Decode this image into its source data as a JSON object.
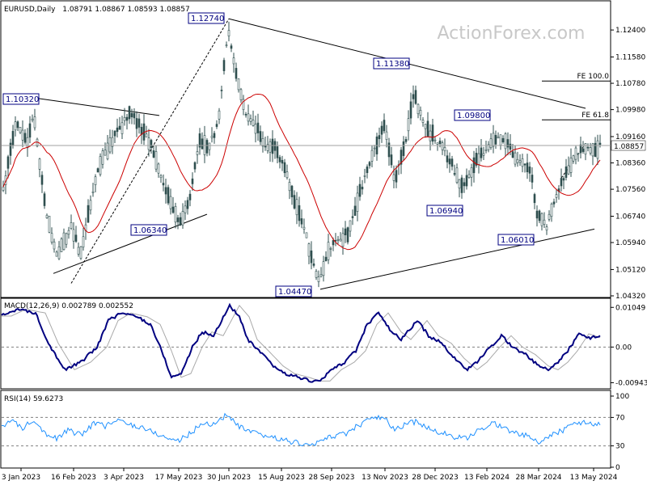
{
  "header": {
    "symbol": "EURUSD,Daily",
    "ohlc": "1.08791 1.08867 1.08593 1.08857"
  },
  "watermark": "ActionForex.com",
  "current_price_label": "1.08857",
  "chart_data": [
    {
      "type": "candlestick",
      "title": "EURUSD,Daily",
      "ylim": [
        1.0432,
        1.1282
      ],
      "y_ticks": [
        "1.12400",
        "1.11580",
        "1.10780",
        "1.09980",
        "1.09160",
        "1.08360",
        "1.07560",
        "1.06740",
        "1.05940",
        "1.05120",
        "1.04320"
      ],
      "x_ticks": [
        "3 Jan 2023",
        "16 Feb 2023",
        "3 Apr 2023",
        "17 May 2023",
        "30 Jun 2023",
        "15 Aug 2023",
        "28 Sep 2023",
        "13 Nov 2023",
        "28 Dec 2023",
        "13 Feb 2024",
        "28 Mar 2024",
        "13 May 2024"
      ],
      "close_path": [
        [
          0,
          1.072
        ],
        [
          8,
          1.08
        ],
        [
          20,
          1.096
        ],
        [
          34,
          1.09
        ],
        [
          42,
          1.098
        ],
        [
          56,
          1.07
        ],
        [
          70,
          1.056
        ],
        [
          88,
          1.064
        ],
        [
          100,
          1.056
        ],
        [
          112,
          1.072
        ],
        [
          125,
          1.084
        ],
        [
          138,
          1.09
        ],
        [
          150,
          1.095
        ],
        [
          162,
          1.099
        ],
        [
          174,
          1.094
        ],
        [
          186,
          1.09
        ],
        [
          198,
          1.08
        ],
        [
          210,
          1.072
        ],
        [
          222,
          1.065
        ],
        [
          234,
          1.072
        ],
        [
          246,
          1.09
        ],
        [
          258,
          1.088
        ],
        [
          270,
          1.096
        ],
        [
          282,
          1.125
        ],
        [
          292,
          1.11
        ],
        [
          304,
          1.098
        ],
        [
          316,
          1.095
        ],
        [
          328,
          1.088
        ],
        [
          340,
          1.088
        ],
        [
          352,
          1.082
        ],
        [
          364,
          1.072
        ],
        [
          376,
          1.064
        ],
        [
          388,
          1.052
        ],
        [
          396,
          1.048
        ],
        [
          406,
          1.057
        ],
        [
          418,
          1.06
        ],
        [
          430,
          1.062
        ],
        [
          440,
          1.07
        ],
        [
          452,
          1.08
        ],
        [
          464,
          1.088
        ],
        [
          476,
          1.095
        ],
        [
          488,
          1.078
        ],
        [
          500,
          1.088
        ],
        [
          512,
          1.105
        ],
        [
          524,
          1.095
        ],
        [
          536,
          1.092
        ],
        [
          548,
          1.088
        ],
        [
          560,
          1.082
        ],
        [
          572,
          1.076
        ],
        [
          584,
          1.082
        ],
        [
          596,
          1.086
        ],
        [
          608,
          1.09
        ],
        [
          620,
          1.092
        ],
        [
          632,
          1.087
        ],
        [
          644,
          1.084
        ],
        [
          656,
          1.081
        ],
        [
          664,
          1.068
        ],
        [
          676,
          1.064
        ],
        [
          688,
          1.074
        ],
        [
          700,
          1.08
        ],
        [
          712,
          1.086
        ],
        [
          724,
          1.088
        ],
        [
          736,
          1.087
        ],
        [
          742,
          1.0886
        ]
      ],
      "annotations": [
        {
          "text": "1.12740",
          "value": 1.1274
        },
        {
          "text": "1.11380",
          "value": 1.1138
        },
        {
          "text": "1.10320",
          "value": 1.1032
        },
        {
          "text": "1.09800",
          "value": 1.098
        },
        {
          "text": "1.06340",
          "value": 1.0634
        },
        {
          "text": "1.06940",
          "value": 1.0694
        },
        {
          "text": "1.06010",
          "value": 1.0601
        },
        {
          "text": "1.04470",
          "value": 1.0447
        }
      ],
      "levels": [
        {
          "text": "FE 100.0",
          "value": 1.1085
        },
        {
          "text": "FE 61.8",
          "value": 1.0967
        }
      ],
      "series": [
        {
          "name": "",
          "color": "#2f4f4f"
        },
        {
          "name": "",
          "color": "#cc0000"
        }
      ]
    },
    {
      "type": "line",
      "title": "MACD(12,26,9) 0.002789 0.002552",
      "ylim": [
        -0.0104,
        0.0114
      ],
      "y_ticks": [
        "0.01049",
        "0.00",
        "-0.009435"
      ],
      "series": [
        {
          "name": "",
          "color": "#000080"
        },
        {
          "name": "",
          "color": "#a9a9a9"
        }
      ],
      "macd_path": [
        [
          0,
          0.008
        ],
        [
          20,
          0.01
        ],
        [
          44,
          0.009
        ],
        [
          60,
          0.001
        ],
        [
          80,
          -0.006
        ],
        [
          100,
          -0.004
        ],
        [
          120,
          0.0
        ],
        [
          134,
          0.007
        ],
        [
          150,
          0.009
        ],
        [
          170,
          0.008
        ],
        [
          186,
          0.006
        ],
        [
          200,
          -0.001
        ],
        [
          212,
          -0.008
        ],
        [
          224,
          -0.007
        ],
        [
          238,
          0.0
        ],
        [
          250,
          0.004
        ],
        [
          264,
          0.003
        ],
        [
          284,
          0.011
        ],
        [
          296,
          0.008
        ],
        [
          306,
          0.002
        ],
        [
          320,
          -0.001
        ],
        [
          338,
          -0.005
        ],
        [
          352,
          -0.007
        ],
        [
          370,
          -0.008
        ],
        [
          384,
          -0.009
        ],
        [
          396,
          -0.009
        ],
        [
          410,
          -0.006
        ],
        [
          426,
          -0.004
        ],
        [
          440,
          -0.001
        ],
        [
          454,
          0.006
        ],
        [
          468,
          0.009
        ],
        [
          484,
          0.004
        ],
        [
          496,
          0.002
        ],
        [
          516,
          0.007
        ],
        [
          530,
          0.003
        ],
        [
          546,
          0.001
        ],
        [
          562,
          -0.003
        ],
        [
          578,
          -0.006
        ],
        [
          590,
          -0.004
        ],
        [
          606,
          0.0
        ],
        [
          620,
          0.003
        ],
        [
          634,
          0.0
        ],
        [
          650,
          -0.002
        ],
        [
          666,
          -0.005
        ],
        [
          678,
          -0.006
        ],
        [
          690,
          -0.004
        ],
        [
          702,
          -0.001
        ],
        [
          716,
          0.0035
        ],
        [
          730,
          0.0025
        ],
        [
          742,
          0.0028
        ]
      ]
    },
    {
      "type": "line",
      "title": "RSI(14) 59.6273",
      "ylim": [
        0,
        100
      ],
      "y_ticks": [
        "100",
        "70",
        "30",
        "0"
      ],
      "series": [
        {
          "name": "",
          "color": "#1e90ff"
        }
      ],
      "rsi_path": [
        [
          0,
          58
        ],
        [
          14,
          65
        ],
        [
          28,
          55
        ],
        [
          42,
          68
        ],
        [
          56,
          48
        ],
        [
          70,
          40
        ],
        [
          84,
          52
        ],
        [
          100,
          45
        ],
        [
          116,
          62
        ],
        [
          130,
          58
        ],
        [
          146,
          66
        ],
        [
          160,
          60
        ],
        [
          176,
          56
        ],
        [
          192,
          48
        ],
        [
          208,
          40
        ],
        [
          222,
          38
        ],
        [
          236,
          48
        ],
        [
          250,
          62
        ],
        [
          264,
          60
        ],
        [
          280,
          74
        ],
        [
          294,
          58
        ],
        [
          308,
          50
        ],
        [
          322,
          45
        ],
        [
          338,
          42
        ],
        [
          352,
          38
        ],
        [
          368,
          34
        ],
        [
          384,
          30
        ],
        [
          396,
          36
        ],
        [
          410,
          44
        ],
        [
          426,
          46
        ],
        [
          442,
          58
        ],
        [
          458,
          68
        ],
        [
          474,
          70
        ],
        [
          488,
          52
        ],
        [
          504,
          62
        ],
        [
          518,
          64
        ],
        [
          532,
          52
        ],
        [
          548,
          48
        ],
        [
          562,
          42
        ],
        [
          578,
          40
        ],
        [
          592,
          52
        ],
        [
          606,
          62
        ],
        [
          620,
          58
        ],
        [
          636,
          48
        ],
        [
          652,
          44
        ],
        [
          666,
          34
        ],
        [
          680,
          44
        ],
        [
          696,
          52
        ],
        [
          712,
          64
        ],
        [
          726,
          62
        ],
        [
          742,
          60
        ]
      ]
    }
  ]
}
